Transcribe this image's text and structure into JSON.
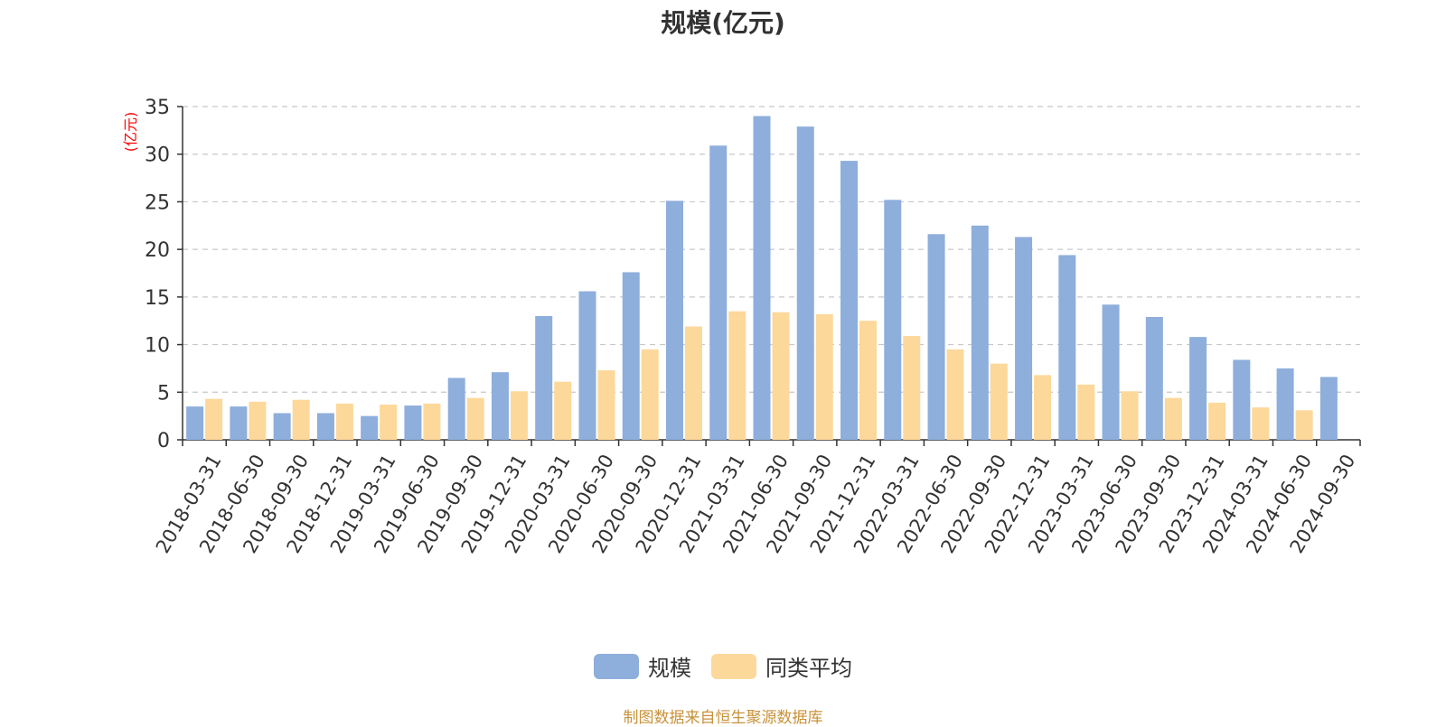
{
  "chart_data": {
    "type": "bar",
    "title": "规模(亿元)",
    "ylabel": "(亿元)",
    "ylim": [
      0,
      35
    ],
    "yticks": [
      0,
      5,
      10,
      15,
      20,
      25,
      30,
      35
    ],
    "grid": true,
    "legend_position": "bottom",
    "categories": [
      "2018-03-31",
      "2018-06-30",
      "2018-09-30",
      "2018-12-31",
      "2019-03-31",
      "2019-06-30",
      "2019-09-30",
      "2019-12-31",
      "2020-03-31",
      "2020-06-30",
      "2020-09-30",
      "2020-12-31",
      "2021-03-31",
      "2021-06-30",
      "2021-09-30",
      "2021-12-31",
      "2022-03-31",
      "2022-06-30",
      "2022-09-30",
      "2022-12-31",
      "2023-03-31",
      "2023-06-30",
      "2023-09-30",
      "2023-12-31",
      "2024-03-31",
      "2024-06-30",
      "2024-09-30"
    ],
    "series": [
      {
        "name": "规模",
        "color": "#8eaedc",
        "values": [
          3.5,
          3.5,
          2.8,
          2.8,
          2.5,
          3.6,
          6.5,
          7.1,
          13.0,
          15.6,
          17.6,
          25.1,
          30.9,
          34.0,
          32.9,
          29.3,
          25.2,
          21.6,
          22.5,
          21.3,
          19.4,
          14.2,
          12.9,
          10.8,
          8.4,
          7.5,
          6.6
        ]
      },
      {
        "name": "同类平均",
        "color": "#fdd89b",
        "values": [
          4.3,
          4.0,
          4.2,
          3.8,
          3.7,
          3.8,
          4.4,
          5.1,
          6.1,
          7.3,
          9.5,
          11.9,
          13.5,
          13.4,
          13.2,
          12.5,
          10.9,
          9.5,
          8.0,
          6.8,
          5.8,
          5.1,
          4.4,
          3.9,
          3.4,
          3.1,
          null
        ]
      }
    ]
  },
  "source_text": "制图数据来自恒生聚源数据库"
}
